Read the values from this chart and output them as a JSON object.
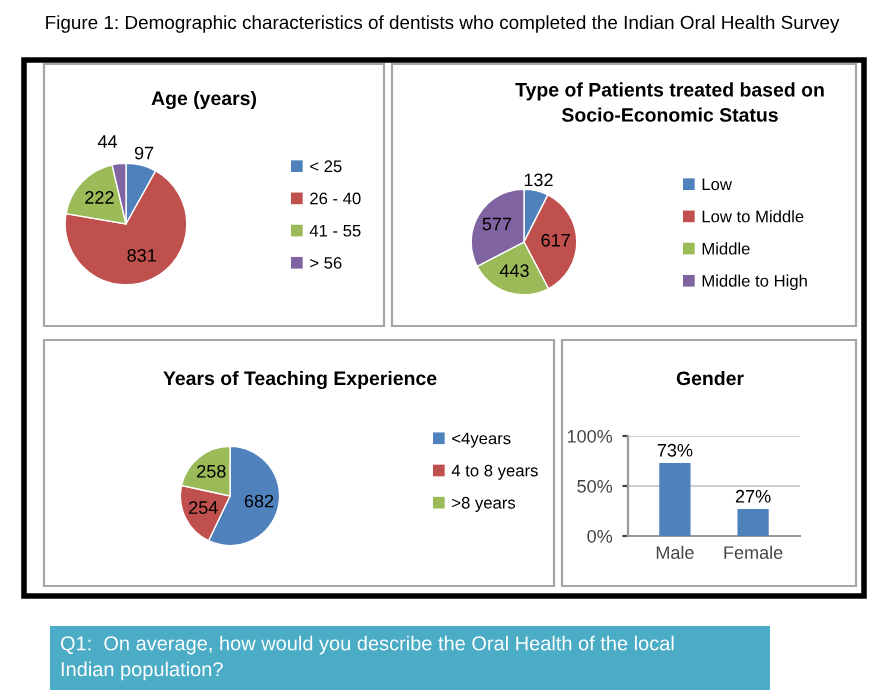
{
  "chart_data": [
    {
      "type": "other",
      "title": "Figure 1: Demographic characteristics of dentists who completed the Indian Oral Health Survey"
    },
    {
      "type": "pie",
      "title": "Age (years)",
      "categories": [
        "< 25",
        "26 - 40",
        "41 - 55",
        "> 56"
      ],
      "values": [
        97,
        831,
        222,
        44
      ],
      "colors": [
        "#4f81bd",
        "#c0504d",
        "#9bbb59",
        "#8064a2"
      ],
      "data_labels": true,
      "legend": "right"
    },
    {
      "type": "pie",
      "title": "Type of Patients treated based on\nSocio-Economic Status",
      "categories": [
        "Low",
        "Low to Middle",
        "Middle",
        "Middle to High"
      ],
      "values": [
        132,
        617,
        443,
        577
      ],
      "colors": [
        "#4f81bd",
        "#c0504d",
        "#9bbb59",
        "#8064a2"
      ],
      "data_labels": true,
      "legend": "right"
    },
    {
      "type": "pie",
      "title": "Years of Teaching Experience",
      "categories": [
        "<4years",
        "4 to 8 years",
        ">8 years"
      ],
      "values": [
        682,
        254,
        258
      ],
      "colors": [
        "#4f81bd",
        "#c0504d",
        "#9bbb59"
      ],
      "data_labels": true,
      "legend": "right"
    },
    {
      "type": "bar",
      "title": "Gender",
      "categories": [
        "Male",
        "Female"
      ],
      "values": [
        73,
        27
      ],
      "color": "#4f81bd",
      "value_labels": [
        "73%",
        "27%"
      ],
      "ylim": [
        0,
        100
      ],
      "yticks": [
        {
          "value": 0,
          "label": "0%"
        },
        {
          "value": 50,
          "label": "50%"
        },
        {
          "value": 100,
          "label": "100%"
        }
      ],
      "grid": "y"
    },
    {
      "type": "other",
      "title": "Q1:  On average, how would you describe the Oral Health of the local\nIndian population?"
    }
  ]
}
